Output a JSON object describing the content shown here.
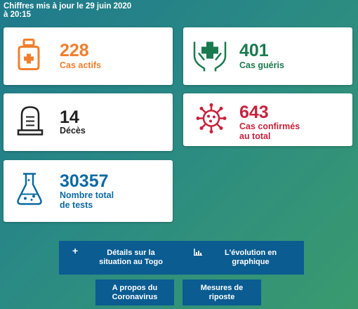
{
  "header": {
    "update_text_line1": "Chiffres mis à jour le 29 juin 2020",
    "update_text_line2": "à 20:15"
  },
  "cards": {
    "actifs": {
      "value": "228",
      "label": "Cas actifs",
      "color": "#f07e2d",
      "icon": "medicine-bottle-icon"
    },
    "gueris": {
      "value": "401",
      "label": "Cas guéris",
      "color": "#1a7a4f",
      "icon": "hands-cross-icon"
    },
    "deces": {
      "value": "14",
      "label": "Décès",
      "color": "#222222",
      "icon": "tombstone-icon"
    },
    "confirmes": {
      "value": "643",
      "label_line1": "Cas confirmés",
      "label_line2": "au total",
      "color": "#c8223b",
      "icon": "virus-icon"
    },
    "tests": {
      "value": "30357",
      "label_line1": "Nombre total",
      "label_line2": "de tests",
      "color": "#0b6aa2",
      "icon": "flask-icon"
    }
  },
  "buttons": {
    "details": {
      "line1": "Détails sur la",
      "line2": "situation au Togo",
      "icon": "plus-icon"
    },
    "evolution": {
      "line1": "L'évolution en",
      "line2": "graphique",
      "icon": "bar-chart-icon"
    },
    "apropos": {
      "line1": "A propos du",
      "line2": "Coronavirus"
    },
    "mesures": {
      "line1": "Mesures de",
      "line2": "riposte"
    }
  }
}
